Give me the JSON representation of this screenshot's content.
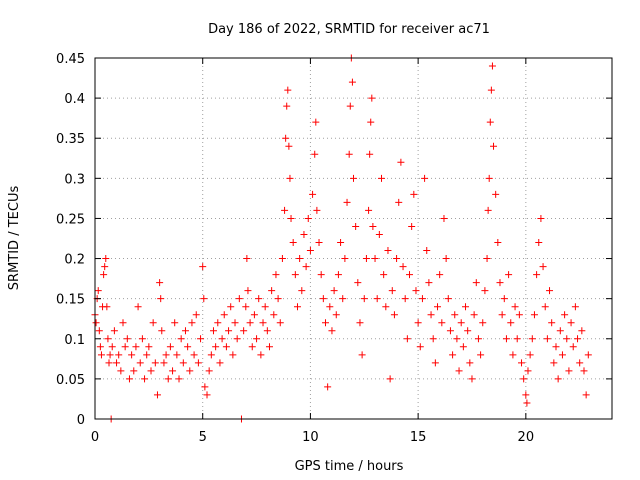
{
  "chart_data": {
    "type": "scatter",
    "title": "Day 186 of 2022, SRMTID for receiver ac71",
    "xlabel": "GPS time / hours",
    "ylabel": "SRMTID / TECUs",
    "xlim": [
      0,
      24
    ],
    "ylim": [
      0,
      0.45
    ],
    "xticks": [
      0,
      5,
      10,
      15,
      20
    ],
    "yticks": [
      0,
      0.05,
      0.1,
      0.15,
      0.2,
      0.25,
      0.3,
      0.35,
      0.4,
      0.45
    ],
    "xtick_labels": [
      "0",
      "5",
      "10",
      "15",
      "20"
    ],
    "ytick_labels": [
      "0",
      "0.05",
      "0.1",
      "0.15",
      "0.2",
      "0.25",
      "0.3",
      "0.35",
      "0.4",
      "0.45"
    ],
    "grid": true,
    "marker": "+",
    "color": "#ff0000",
    "series": [
      {
        "name": "SRMTID",
        "points": [
          [
            0.0,
            0.13
          ],
          [
            0.05,
            0.12
          ],
          [
            0.1,
            0.15
          ],
          [
            0.15,
            0.16
          ],
          [
            0.2,
            0.11
          ],
          [
            0.25,
            0.09
          ],
          [
            0.3,
            0.08
          ],
          [
            0.35,
            0.14
          ],
          [
            0.4,
            0.18
          ],
          [
            0.45,
            0.19
          ],
          [
            0.5,
            0.2
          ],
          [
            0.55,
            0.14
          ],
          [
            0.6,
            0.1
          ],
          [
            0.65,
            0.07
          ],
          [
            0.7,
            0.08
          ],
          [
            0.75,
            0.0
          ],
          [
            0.8,
            0.09
          ],
          [
            0.9,
            0.11
          ],
          [
            1.0,
            0.07
          ],
          [
            1.1,
            0.08
          ],
          [
            1.2,
            0.06
          ],
          [
            1.3,
            0.12
          ],
          [
            1.4,
            0.09
          ],
          [
            1.5,
            0.1
          ],
          [
            1.6,
            0.05
          ],
          [
            1.7,
            0.08
          ],
          [
            1.8,
            0.06
          ],
          [
            1.9,
            0.09
          ],
          [
            2.0,
            0.14
          ],
          [
            2.1,
            0.07
          ],
          [
            2.2,
            0.1
          ],
          [
            2.3,
            0.05
          ],
          [
            2.4,
            0.08
          ],
          [
            2.5,
            0.09
          ],
          [
            2.6,
            0.06
          ],
          [
            2.7,
            0.12
          ],
          [
            2.8,
            0.07
          ],
          [
            2.9,
            0.03
          ],
          [
            3.0,
            0.17
          ],
          [
            3.05,
            0.15
          ],
          [
            3.1,
            0.11
          ],
          [
            3.2,
            0.07
          ],
          [
            3.3,
            0.08
          ],
          [
            3.4,
            0.05
          ],
          [
            3.5,
            0.09
          ],
          [
            3.6,
            0.06
          ],
          [
            3.7,
            0.12
          ],
          [
            3.8,
            0.08
          ],
          [
            3.9,
            0.05
          ],
          [
            4.0,
            0.1
          ],
          [
            4.1,
            0.07
          ],
          [
            4.2,
            0.11
          ],
          [
            4.3,
            0.09
          ],
          [
            4.4,
            0.06
          ],
          [
            4.5,
            0.12
          ],
          [
            4.6,
            0.08
          ],
          [
            4.7,
            0.13
          ],
          [
            4.8,
            0.07
          ],
          [
            4.9,
            0.1
          ],
          [
            5.0,
            0.19
          ],
          [
            5.05,
            0.15
          ],
          [
            5.1,
            0.04
          ],
          [
            5.2,
            0.03
          ],
          [
            5.3,
            0.06
          ],
          [
            5.4,
            0.08
          ],
          [
            5.5,
            0.11
          ],
          [
            5.6,
            0.09
          ],
          [
            5.7,
            0.12
          ],
          [
            5.8,
            0.07
          ],
          [
            5.9,
            0.1
          ],
          [
            6.0,
            0.13
          ],
          [
            6.1,
            0.09
          ],
          [
            6.2,
            0.11
          ],
          [
            6.3,
            0.14
          ],
          [
            6.4,
            0.08
          ],
          [
            6.5,
            0.12
          ],
          [
            6.6,
            0.1
          ],
          [
            6.7,
            0.15
          ],
          [
            6.8,
            0.0
          ],
          [
            6.9,
            0.11
          ],
          [
            7.0,
            0.14
          ],
          [
            7.05,
            0.2
          ],
          [
            7.1,
            0.16
          ],
          [
            7.2,
            0.12
          ],
          [
            7.3,
            0.09
          ],
          [
            7.4,
            0.13
          ],
          [
            7.5,
            0.1
          ],
          [
            7.6,
            0.15
          ],
          [
            7.7,
            0.08
          ],
          [
            7.8,
            0.12
          ],
          [
            7.9,
            0.14
          ],
          [
            8.0,
            0.11
          ],
          [
            8.1,
            0.09
          ],
          [
            8.2,
            0.16
          ],
          [
            8.3,
            0.13
          ],
          [
            8.4,
            0.18
          ],
          [
            8.5,
            0.15
          ],
          [
            8.6,
            0.12
          ],
          [
            8.7,
            0.2
          ],
          [
            8.8,
            0.26
          ],
          [
            8.85,
            0.35
          ],
          [
            8.9,
            0.39
          ],
          [
            8.95,
            0.41
          ],
          [
            9.0,
            0.34
          ],
          [
            9.05,
            0.3
          ],
          [
            9.1,
            0.25
          ],
          [
            9.2,
            0.22
          ],
          [
            9.3,
            0.18
          ],
          [
            9.4,
            0.14
          ],
          [
            9.5,
            0.2
          ],
          [
            9.6,
            0.16
          ],
          [
            9.7,
            0.23
          ],
          [
            9.8,
            0.19
          ],
          [
            9.9,
            0.25
          ],
          [
            10.0,
            0.21
          ],
          [
            10.1,
            0.28
          ],
          [
            10.2,
            0.33
          ],
          [
            10.25,
            0.37
          ],
          [
            10.3,
            0.26
          ],
          [
            10.4,
            0.22
          ],
          [
            10.5,
            0.18
          ],
          [
            10.6,
            0.15
          ],
          [
            10.7,
            0.12
          ],
          [
            10.8,
            0.04
          ],
          [
            10.9,
            0.14
          ],
          [
            11.0,
            0.11
          ],
          [
            11.1,
            0.16
          ],
          [
            11.2,
            0.13
          ],
          [
            11.3,
            0.18
          ],
          [
            11.4,
            0.22
          ],
          [
            11.5,
            0.15
          ],
          [
            11.6,
            0.2
          ],
          [
            11.7,
            0.27
          ],
          [
            11.8,
            0.33
          ],
          [
            11.85,
            0.39
          ],
          [
            11.9,
            0.45
          ],
          [
            11.95,
            0.42
          ],
          [
            12.0,
            0.3
          ],
          [
            12.1,
            0.24
          ],
          [
            12.2,
            0.17
          ],
          [
            12.3,
            0.12
          ],
          [
            12.4,
            0.08
          ],
          [
            12.5,
            0.15
          ],
          [
            12.6,
            0.2
          ],
          [
            12.7,
            0.26
          ],
          [
            12.75,
            0.33
          ],
          [
            12.8,
            0.37
          ],
          [
            12.85,
            0.4
          ],
          [
            12.9,
            0.24
          ],
          [
            13.0,
            0.2
          ],
          [
            13.1,
            0.15
          ],
          [
            13.2,
            0.23
          ],
          [
            13.3,
            0.3
          ],
          [
            13.4,
            0.18
          ],
          [
            13.5,
            0.14
          ],
          [
            13.6,
            0.21
          ],
          [
            13.7,
            0.05
          ],
          [
            13.8,
            0.16
          ],
          [
            13.9,
            0.13
          ],
          [
            14.0,
            0.2
          ],
          [
            14.1,
            0.27
          ],
          [
            14.2,
            0.32
          ],
          [
            14.3,
            0.19
          ],
          [
            14.4,
            0.15
          ],
          [
            14.5,
            0.1
          ],
          [
            14.6,
            0.18
          ],
          [
            14.7,
            0.24
          ],
          [
            14.8,
            0.28
          ],
          [
            14.9,
            0.16
          ],
          [
            15.0,
            0.12
          ],
          [
            15.1,
            0.09
          ],
          [
            15.2,
            0.15
          ],
          [
            15.3,
            0.3
          ],
          [
            15.4,
            0.21
          ],
          [
            15.5,
            0.17
          ],
          [
            15.6,
            0.13
          ],
          [
            15.7,
            0.1
          ],
          [
            15.8,
            0.07
          ],
          [
            15.9,
            0.14
          ],
          [
            16.0,
            0.18
          ],
          [
            16.1,
            0.12
          ],
          [
            16.2,
            0.25
          ],
          [
            16.3,
            0.2
          ],
          [
            16.4,
            0.15
          ],
          [
            16.5,
            0.11
          ],
          [
            16.6,
            0.08
          ],
          [
            16.7,
            0.13
          ],
          [
            16.8,
            0.1
          ],
          [
            16.9,
            0.06
          ],
          [
            17.0,
            0.12
          ],
          [
            17.1,
            0.09
          ],
          [
            17.2,
            0.14
          ],
          [
            17.3,
            0.11
          ],
          [
            17.4,
            0.07
          ],
          [
            17.5,
            0.05
          ],
          [
            17.6,
            0.13
          ],
          [
            17.7,
            0.17
          ],
          [
            17.8,
            0.1
          ],
          [
            17.9,
            0.08
          ],
          [
            18.0,
            0.12
          ],
          [
            18.1,
            0.16
          ],
          [
            18.2,
            0.2
          ],
          [
            18.25,
            0.26
          ],
          [
            18.3,
            0.3
          ],
          [
            18.35,
            0.37
          ],
          [
            18.4,
            0.41
          ],
          [
            18.45,
            0.44
          ],
          [
            18.5,
            0.34
          ],
          [
            18.6,
            0.28
          ],
          [
            18.7,
            0.22
          ],
          [
            18.8,
            0.17
          ],
          [
            18.9,
            0.13
          ],
          [
            19.0,
            0.15
          ],
          [
            19.1,
            0.1
          ],
          [
            19.2,
            0.18
          ],
          [
            19.3,
            0.12
          ],
          [
            19.4,
            0.08
          ],
          [
            19.5,
            0.14
          ],
          [
            19.6,
            0.1
          ],
          [
            19.7,
            0.13
          ],
          [
            19.8,
            0.07
          ],
          [
            19.9,
            0.05
          ],
          [
            20.0,
            0.03
          ],
          [
            20.05,
            0.02
          ],
          [
            20.1,
            0.06
          ],
          [
            20.2,
            0.08
          ],
          [
            20.3,
            0.1
          ],
          [
            20.4,
            0.13
          ],
          [
            20.5,
            0.18
          ],
          [
            20.6,
            0.22
          ],
          [
            20.7,
            0.25
          ],
          [
            20.8,
            0.19
          ],
          [
            20.9,
            0.14
          ],
          [
            21.0,
            0.1
          ],
          [
            21.1,
            0.16
          ],
          [
            21.2,
            0.12
          ],
          [
            21.3,
            0.07
          ],
          [
            21.4,
            0.09
          ],
          [
            21.5,
            0.05
          ],
          [
            21.6,
            0.11
          ],
          [
            21.7,
            0.08
          ],
          [
            21.8,
            0.13
          ],
          [
            21.9,
            0.1
          ],
          [
            22.0,
            0.06
          ],
          [
            22.1,
            0.12
          ],
          [
            22.2,
            0.09
          ],
          [
            22.3,
            0.14
          ],
          [
            22.4,
            0.1
          ],
          [
            22.5,
            0.07
          ],
          [
            22.6,
            0.11
          ],
          [
            22.7,
            0.06
          ],
          [
            22.8,
            0.03
          ],
          [
            22.9,
            0.08
          ]
        ]
      }
    ]
  }
}
